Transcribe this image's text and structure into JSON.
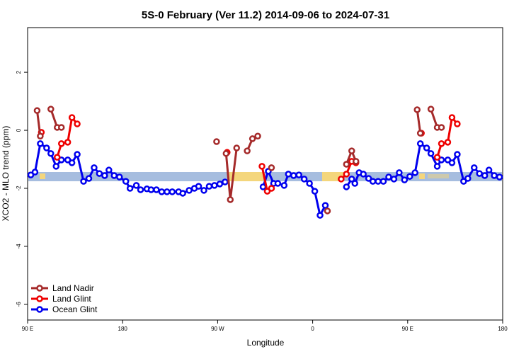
{
  "chart_data": {
    "type": "line",
    "title": "5S-0 February (Ver 11.2)   2014-09-06 to 2024-07-31",
    "x_label": "Longitude",
    "y_label": "XCO2 - MLO trend (ppm)",
    "xlim": [
      90,
      540
    ],
    "ylim": [
      -6.54,
      3.54
    ],
    "xticks": [
      {
        "value": 90,
        "label": "90 E"
      },
      {
        "value": 180,
        "label": "180"
      },
      {
        "value": 270,
        "label": "90 W"
      },
      {
        "value": 360,
        "label": "0"
      },
      {
        "value": 450,
        "label": "90 E"
      },
      {
        "value": 540,
        "label": "180"
      }
    ],
    "yticks": [
      -6,
      -4,
      -2,
      0,
      2
    ],
    "legend": "bottom-left",
    "series": [
      {
        "name": "Ocean Glint",
        "color": "#0000ee",
        "x": [
          93,
          97,
          102,
          108,
          112,
          117,
          122,
          128,
          132,
          137,
          143,
          148,
          153,
          158,
          163,
          167,
          172,
          177,
          183,
          187,
          193,
          197,
          203,
          207,
          212,
          217,
          222,
          227,
          233,
          237,
          243,
          248,
          252,
          257,
          262,
          267,
          272,
          277,
          null,
          313,
          318,
          323,
          327,
          333,
          337,
          342,
          347,
          352,
          357,
          362,
          367,
          372,
          null,
          392,
          397,
          400,
          404,
          408,
          413,
          417,
          422,
          427,
          432,
          437,
          442,
          447,
          452,
          457,
          462,
          468,
          472,
          478,
          482,
          488,
          492,
          497,
          503,
          507,
          513,
          518,
          523,
          527,
          532,
          537
        ],
        "values": [
          -1.54,
          -1.44,
          -0.46,
          -0.61,
          -0.8,
          -1.24,
          -1.02,
          -1.02,
          -1.12,
          -0.83,
          -1.76,
          -1.66,
          -1.29,
          -1.49,
          -1.56,
          -1.37,
          -1.56,
          -1.61,
          -1.76,
          -2.0,
          -1.9,
          -2.05,
          -2.02,
          -2.05,
          -2.05,
          -2.12,
          -2.12,
          -2.12,
          -2.12,
          -2.17,
          -2.07,
          -2.0,
          -1.93,
          -2.07,
          -1.93,
          -1.9,
          -1.85,
          -1.78,
          null,
          -1.95,
          -1.41,
          -1.83,
          -1.83,
          -1.9,
          -1.51,
          -1.56,
          -1.54,
          -1.68,
          -1.83,
          -2.1,
          -2.93,
          -2.59,
          null,
          -1.95,
          -1.68,
          -1.83,
          -1.46,
          -1.51,
          -1.66,
          -1.76,
          -1.76,
          -1.76,
          -1.61,
          -1.68,
          -1.46,
          -1.71,
          -1.59,
          -1.46,
          -0.46,
          -0.61,
          -0.8,
          -1.24,
          -1.02,
          -1.02,
          -1.12,
          -0.83,
          -1.76,
          -1.66,
          -1.29,
          -1.49,
          -1.56,
          -1.37,
          -1.56,
          -1.61
        ]
      },
      {
        "name": "Land Glint",
        "color": "#ee0000",
        "x": [
          103,
          null,
          118,
          122,
          128,
          132,
          137,
          null,
          279,
          null,
          312,
          317,
          321,
          null,
          387,
          392,
          397,
          401,
          null,
          463,
          null,
          478,
          482,
          488,
          492,
          497
        ],
        "values": [
          -0.07,
          null,
          -0.93,
          -0.46,
          -0.41,
          0.44,
          0.22,
          null,
          -0.76,
          null,
          -1.24,
          -2.1,
          -2.0,
          null,
          -1.68,
          -1.51,
          -1.07,
          -1.12,
          null,
          -0.1,
          null,
          -0.93,
          -0.46,
          -0.41,
          0.44,
          0.22
        ]
      },
      {
        "name": "Land Nadir",
        "color": "#a52a2a",
        "x": [
          99,
          102,
          null,
          112,
          118,
          122,
          null,
          269,
          null,
          278,
          282,
          288,
          null,
          298,
          303,
          308,
          null,
          321,
          null,
          374,
          null,
          392,
          397,
          401,
          null,
          459,
          462,
          null,
          472,
          478,
          482
        ],
        "values": [
          0.68,
          -0.2,
          null,
          0.73,
          0.1,
          0.1,
          null,
          -0.39,
          null,
          -0.8,
          -2.39,
          -0.61,
          null,
          -0.71,
          -0.29,
          -0.2,
          null,
          -1.29,
          null,
          -2.78,
          null,
          -1.17,
          -0.71,
          -1.07,
          null,
          0.71,
          -0.1,
          null,
          0.73,
          0.1,
          0.1
        ]
      }
    ]
  }
}
